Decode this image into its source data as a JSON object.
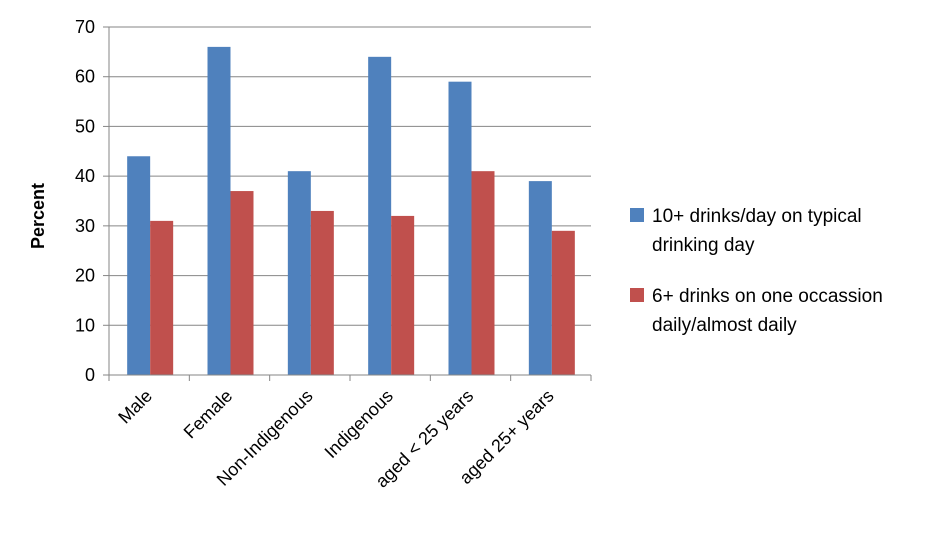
{
  "chart_data": {
    "type": "bar",
    "title": "",
    "xlabel": "",
    "ylabel": "Percent",
    "ylim": [
      0,
      70
    ],
    "yticks": [
      0,
      10,
      20,
      30,
      40,
      50,
      60,
      70
    ],
    "grid": true,
    "legend_position": "right",
    "categories": [
      "Male",
      "Female",
      "Non-Indigenous",
      "Indigenous",
      "aged < 25 years",
      "aged 25+ years"
    ],
    "series": [
      {
        "name": "10+ drinks/day on typical drinking day",
        "legend_lines": [
          "10+ drinks/day on typical",
          "drinking day"
        ],
        "color": "#4F81BD",
        "values": [
          44,
          66,
          41,
          64,
          59,
          39
        ]
      },
      {
        "name": "6+ drinks on one occassion daily/almost daily",
        "legend_lines": [
          "6+ drinks on one occassion",
          "daily/almost daily"
        ],
        "color": "#C0504D",
        "values": [
          31,
          37,
          33,
          32,
          41,
          29
        ]
      }
    ]
  }
}
